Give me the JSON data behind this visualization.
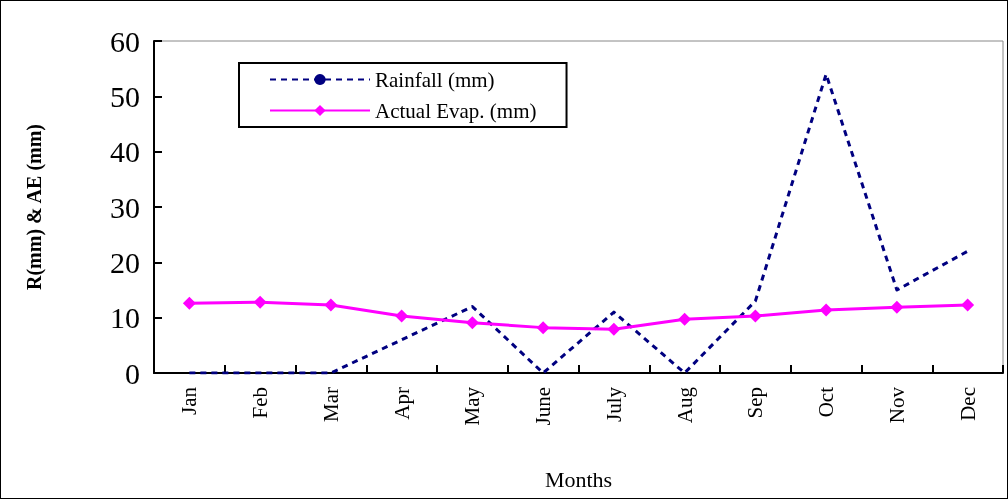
{
  "chart_data": {
    "type": "line",
    "xlabel": "Months",
    "ylabel": "R(mm) & AE (mm)",
    "categories": [
      "Jan",
      "Feb",
      "Mar",
      "Apr",
      "May",
      "June",
      "July",
      "Aug",
      "Sep",
      "Oct",
      "Nov",
      "Dec"
    ],
    "series": [
      {
        "name": "Rainfall (mm)",
        "color": "#000080",
        "line_style": "dashed",
        "marker": "none",
        "values": [
          0,
          0,
          0,
          6,
          12,
          0,
          11,
          0,
          13,
          54,
          15,
          22
        ]
      },
      {
        "name": "Actual Evap. (mm)",
        "color": "#ff00ff",
        "line_style": "solid",
        "marker": "diamond",
        "values": [
          12.6,
          12.8,
          12.3,
          10.3,
          9.1,
          8.2,
          7.9,
          9.7,
          10.3,
          11.4,
          11.9,
          12.3
        ]
      }
    ],
    "ylim": [
      0,
      60
    ],
    "yticks": [
      0,
      10,
      20,
      30,
      40,
      50,
      60
    ],
    "grid": false,
    "legend": "top left"
  }
}
